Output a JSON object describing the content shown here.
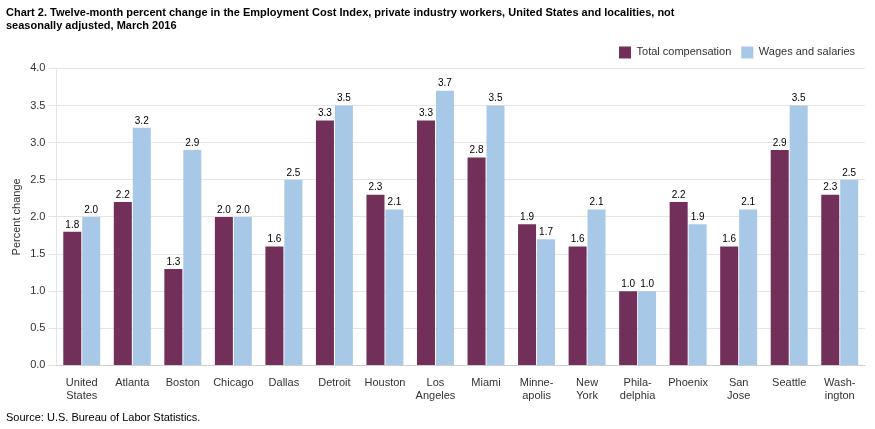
{
  "chart_data": {
    "type": "bar",
    "title": [
      "Chart 2. Twelve-month percent change in the Employment Cost Index, private industry workers, United States and localities, not",
      "seasonally adjusted, March 2016"
    ],
    "ylabel": "Percent change",
    "source": "Source: U.S. Bureau of Labor Statistics.",
    "categories": [
      "United\nStates",
      "Atlanta",
      "Boston",
      "Chicago",
      "Dallas",
      "Detroit",
      "Houston",
      "Los\nAngeles",
      "Miami",
      "Minne-\napolis",
      "New\nYork",
      "Phila-\ndelphia",
      "Phoenix",
      "San\nJose",
      "Seattle",
      "Wash-\nington"
    ],
    "series": [
      {
        "name": "Total compensation",
        "color": "#722F5A",
        "values": [
          1.8,
          2.2,
          1.3,
          2.0,
          1.6,
          3.3,
          2.3,
          3.3,
          2.8,
          1.9,
          1.6,
          1.0,
          2.2,
          1.6,
          2.9,
          2.3
        ],
        "value_labels": [
          "1.8",
          "2.2",
          "1.3",
          "2.0",
          "1.6",
          "3.3",
          "2.3",
          "3.3",
          "2.8",
          "1.9",
          "1.6",
          "1.0",
          "2.2",
          "1.6",
          "2.9",
          "2.3"
        ]
      },
      {
        "name": "Wages and salaries",
        "color": "#A8C8E8",
        "values": [
          2.0,
          3.2,
          2.9,
          2.0,
          2.5,
          3.5,
          2.1,
          3.7,
          3.5,
          1.7,
          2.1,
          1.0,
          1.9,
          2.1,
          3.5,
          2.5
        ],
        "value_labels": [
          "2.0",
          "3.2",
          "2.9",
          "2.0",
          "2.5",
          "3.5",
          "2.1",
          "3.7",
          "3.5",
          "1.7",
          "2.1",
          "1.0",
          "1.9",
          "2.1",
          "3.5",
          "2.5"
        ]
      }
    ],
    "ylim": [
      0,
      4.0
    ],
    "yticks": [
      {
        "value": 0,
        "label": "0.0"
      },
      0.5,
      {
        "value": 1,
        "label": "1.0"
      },
      1.5,
      {
        "value": 2,
        "label": "2.0"
      },
      2.5,
      {
        "value": 3,
        "label": "3.0"
      },
      3.5,
      {
        "value": 4,
        "label": "4.0"
      }
    ],
    "grid": true,
    "legend": "upper right",
    "data_labels": true
  }
}
